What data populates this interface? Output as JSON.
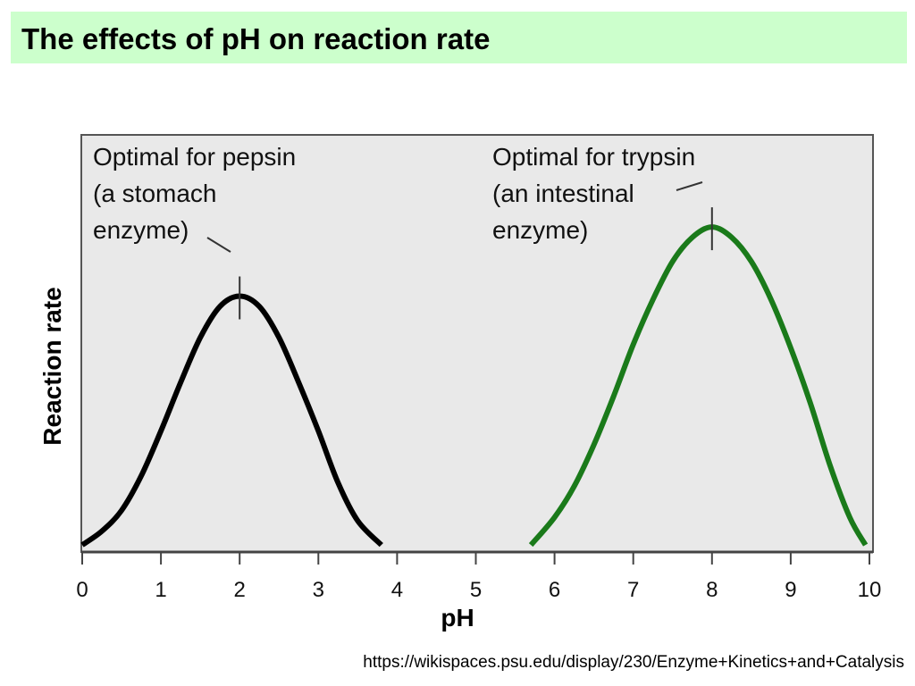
{
  "slide": {
    "title": "The effects of pH on reaction rate",
    "source_url": "https://wikispaces.psu.edu/display/230/Enzyme+Kinetics+and+Catalysis"
  },
  "chart_data": {
    "type": "line",
    "xlabel": "pH",
    "ylabel": "Reaction rate",
    "xlim": [
      0,
      10
    ],
    "ylim": [
      0,
      1
    ],
    "xticks": [
      "0",
      "1",
      "2",
      "3",
      "4",
      "5",
      "6",
      "7",
      "8",
      "9",
      "10"
    ],
    "grid": false,
    "background": "#e9e9e9",
    "series": [
      {
        "color": "#000000",
        "x": [
          0.0,
          0.25,
          0.5,
          0.75,
          1.0,
          1.25,
          1.5,
          1.75,
          2.0,
          2.25,
          2.5,
          2.75,
          3.0,
          3.25,
          3.5,
          3.8
        ],
        "y": [
          0.01,
          0.05,
          0.11,
          0.21,
          0.34,
          0.48,
          0.61,
          0.7,
          0.73,
          0.7,
          0.61,
          0.48,
          0.34,
          0.19,
          0.08,
          0.01
        ]
      },
      {
        "color": "#1a7a1a",
        "x": [
          5.7,
          6.0,
          6.25,
          6.5,
          6.75,
          7.0,
          7.25,
          7.5,
          7.75,
          8.0,
          8.25,
          8.5,
          8.75,
          9.0,
          9.25,
          9.5,
          9.75,
          9.95
        ],
        "y": [
          0.01,
          0.09,
          0.18,
          0.3,
          0.44,
          0.59,
          0.72,
          0.83,
          0.9,
          0.93,
          0.9,
          0.83,
          0.72,
          0.58,
          0.42,
          0.24,
          0.09,
          0.01
        ]
      }
    ],
    "annotations": [
      {
        "lines": [
          "Optimal for pepsin",
          "(a stomach",
          "enzyme)"
        ],
        "x": 2
      },
      {
        "lines": [
          "Optimal for trypsin",
          "(an intestinal",
          "enzyme)"
        ],
        "x": 8
      }
    ]
  }
}
